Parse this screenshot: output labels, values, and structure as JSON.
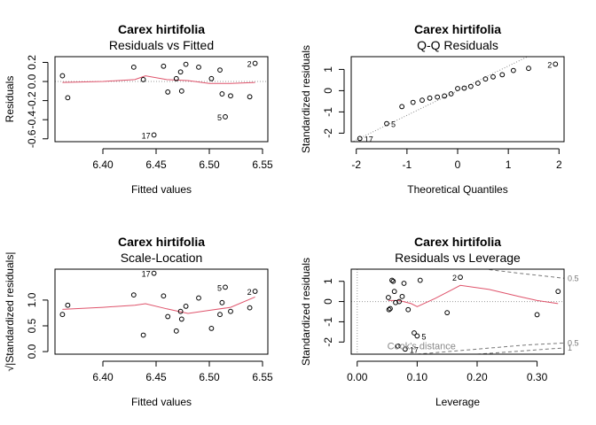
{
  "chart_data": [
    {
      "type": "scatter",
      "title": "Carex hirtifolia",
      "subtitle": "Residuals vs Fitted",
      "xlabel": "Fitted values",
      "ylabel": "Residuals",
      "xlim": [
        6.355,
        6.555
      ],
      "ylim": [
        -0.63,
        0.26
      ],
      "xticks": [
        6.4,
        6.45,
        6.5,
        6.55
      ],
      "xtick_labels": [
        "6.40",
        "6.45",
        "6.50",
        "6.55"
      ],
      "yticks": [
        -0.6,
        -0.4,
        -0.2,
        0.0,
        0.2
      ],
      "ytick_labels": [
        "-0.6",
        "-0.4",
        "-0.2",
        "0.0",
        "0.2"
      ],
      "ref_line": {
        "y": 0,
        "style": "dotted"
      },
      "points": [
        {
          "x": 6.362,
          "y": 0.06
        },
        {
          "x": 6.367,
          "y": -0.17
        },
        {
          "x": 6.429,
          "y": 0.15
        },
        {
          "x": 6.438,
          "y": 0.02
        },
        {
          "x": 6.448,
          "y": -0.56,
          "label": "17"
        },
        {
          "x": 6.457,
          "y": 0.16
        },
        {
          "x": 6.461,
          "y": -0.11
        },
        {
          "x": 6.469,
          "y": 0.03
        },
        {
          "x": 6.473,
          "y": 0.1
        },
        {
          "x": 6.474,
          "y": -0.1
        },
        {
          "x": 6.478,
          "y": 0.18
        },
        {
          "x": 6.49,
          "y": 0.15
        },
        {
          "x": 6.502,
          "y": 0.03
        },
        {
          "x": 6.51,
          "y": 0.12
        },
        {
          "x": 6.512,
          "y": -0.13
        },
        {
          "x": 6.515,
          "y": -0.37,
          "label": "5"
        },
        {
          "x": 6.52,
          "y": -0.15
        },
        {
          "x": 6.538,
          "y": -0.16
        },
        {
          "x": 6.543,
          "y": 0.19,
          "label": "2"
        }
      ],
      "smooth": [
        [
          6.362,
          -0.01
        ],
        [
          6.4,
          0.0
        ],
        [
          6.43,
          0.02
        ],
        [
          6.44,
          0.06
        ],
        [
          6.46,
          0.02
        ],
        [
          6.48,
          0.01
        ],
        [
          6.5,
          -0.02
        ],
        [
          6.52,
          -0.02
        ],
        [
          6.543,
          -0.01
        ]
      ]
    },
    {
      "type": "scatter",
      "title": "Carex hirtifolia",
      "subtitle": "Q-Q Residuals",
      "xlabel": "Theoretical Quantiles",
      "ylabel": "Standardized residuals",
      "xlim": [
        -2.1,
        2.1
      ],
      "ylim": [
        -2.4,
        1.6
      ],
      "xticks": [
        -2,
        -1,
        0,
        1,
        2
      ],
      "xtick_labels": [
        "-2",
        "-1",
        "0",
        "1",
        "2"
      ],
      "yticks": [
        -2,
        -1,
        0,
        1
      ],
      "ytick_labels": [
        "-2",
        "-1",
        "0",
        "1"
      ],
      "ref_line": {
        "slope": 1.16,
        "intercept": 0.0,
        "style": "dotted"
      },
      "points": [
        {
          "x": -1.93,
          "y": -2.25,
          "label": "17"
        },
        {
          "x": -1.4,
          "y": -1.55,
          "label": "5"
        },
        {
          "x": -1.1,
          "y": -0.75
        },
        {
          "x": -0.88,
          "y": -0.55
        },
        {
          "x": -0.7,
          "y": -0.45
        },
        {
          "x": -0.55,
          "y": -0.35
        },
        {
          "x": -0.4,
          "y": -0.3
        },
        {
          "x": -0.26,
          "y": -0.25
        },
        {
          "x": -0.13,
          "y": -0.15
        },
        {
          "x": 0.0,
          "y": 0.1
        },
        {
          "x": 0.13,
          "y": 0.12
        },
        {
          "x": 0.26,
          "y": 0.2
        },
        {
          "x": 0.4,
          "y": 0.35
        },
        {
          "x": 0.55,
          "y": 0.55
        },
        {
          "x": 0.7,
          "y": 0.65
        },
        {
          "x": 0.88,
          "y": 0.75
        },
        {
          "x": 1.1,
          "y": 0.95
        },
        {
          "x": 1.4,
          "y": 1.05
        },
        {
          "x": 1.93,
          "y": 1.25,
          "label": "2"
        }
      ]
    },
    {
      "type": "scatter",
      "title": "Carex hirtifolia",
      "subtitle": "Scale-Location",
      "xlabel": "Fitted values",
      "ylabel": "√|Standardized residuals|",
      "xlim": [
        6.355,
        6.555
      ],
      "ylim": [
        -0.05,
        1.6
      ],
      "xticks": [
        6.4,
        6.45,
        6.5,
        6.55
      ],
      "xtick_labels": [
        "6.40",
        "6.45",
        "6.50",
        "6.55"
      ],
      "yticks": [
        0.0,
        0.5,
        1.0
      ],
      "ytick_labels": [
        "0.0",
        "0.5",
        "1.0"
      ],
      "points": [
        {
          "x": 6.362,
          "y": 0.72
        },
        {
          "x": 6.367,
          "y": 0.9
        },
        {
          "x": 6.429,
          "y": 1.1
        },
        {
          "x": 6.438,
          "y": 0.32
        },
        {
          "x": 6.448,
          "y": 1.52,
          "label": "17"
        },
        {
          "x": 6.457,
          "y": 1.08
        },
        {
          "x": 6.461,
          "y": 0.68
        },
        {
          "x": 6.469,
          "y": 0.4
        },
        {
          "x": 6.473,
          "y": 0.78
        },
        {
          "x": 6.474,
          "y": 0.63
        },
        {
          "x": 6.478,
          "y": 0.88
        },
        {
          "x": 6.49,
          "y": 1.04
        },
        {
          "x": 6.502,
          "y": 0.45
        },
        {
          "x": 6.51,
          "y": 0.72
        },
        {
          "x": 6.512,
          "y": 0.95
        },
        {
          "x": 6.515,
          "y": 1.25,
          "label": "5"
        },
        {
          "x": 6.52,
          "y": 0.78
        },
        {
          "x": 6.538,
          "y": 0.85
        },
        {
          "x": 6.543,
          "y": 1.17,
          "label": "2"
        }
      ],
      "smooth": [
        [
          6.362,
          0.82
        ],
        [
          6.4,
          0.86
        ],
        [
          6.43,
          0.9
        ],
        [
          6.44,
          0.93
        ],
        [
          6.46,
          0.83
        ],
        [
          6.48,
          0.74
        ],
        [
          6.5,
          0.8
        ],
        [
          6.52,
          0.86
        ],
        [
          6.543,
          1.06
        ]
      ]
    },
    {
      "type": "scatter",
      "title": "Carex hirtifolia",
      "subtitle": "Residuals vs Leverage",
      "xlabel": "Leverage",
      "ylabel": "Standardized residuals",
      "xlim": [
        -0.01,
        0.345
      ],
      "ylim": [
        -2.6,
        1.6
      ],
      "xticks": [
        0.0,
        0.1,
        0.2,
        0.3
      ],
      "xtick_labels": [
        "0.00",
        "0.10",
        "0.20",
        "0.30"
      ],
      "yticks": [
        -2,
        -1,
        0,
        1
      ],
      "ytick_labels": [
        "-2",
        "-1",
        "0",
        "1"
      ],
      "ref_line": {
        "y": 0,
        "x": 0,
        "style": "dotted"
      },
      "cooks_label": "Cook's distance",
      "contours": [
        {
          "label": "0.5",
          "side": "upper",
          "points": [
            [
              0.22,
              1.58
            ],
            [
              0.27,
              1.4
            ],
            [
              0.33,
              1.2
            ],
            [
              0.345,
              1.15
            ]
          ]
        },
        {
          "label": "0.5",
          "side": "lower",
          "points": [
            [
              0.1,
              -2.6
            ],
            [
              0.2,
              -2.35
            ],
            [
              0.28,
              -2.15
            ],
            [
              0.345,
              -2.05
            ]
          ]
        },
        {
          "label": "1",
          "side": "lower",
          "points": [
            [
              0.2,
              -2.6
            ],
            [
              0.27,
              -2.45
            ],
            [
              0.33,
              -2.32
            ],
            [
              0.345,
              -2.3
            ]
          ]
        }
      ],
      "points": [
        {
          "x": 0.052,
          "y": 0.2
        },
        {
          "x": 0.053,
          "y": -0.4
        },
        {
          "x": 0.055,
          "y": -0.35
        },
        {
          "x": 0.058,
          "y": 1.05
        },
        {
          "x": 0.06,
          "y": 1.0
        },
        {
          "x": 0.062,
          "y": 0.5
        },
        {
          "x": 0.064,
          "y": -0.05
        },
        {
          "x": 0.068,
          "y": -2.2
        },
        {
          "x": 0.07,
          "y": 0.0
        },
        {
          "x": 0.075,
          "y": 0.25
        },
        {
          "x": 0.078,
          "y": 0.9
        },
        {
          "x": 0.08,
          "y": -2.35,
          "label": "17"
        },
        {
          "x": 0.085,
          "y": -0.4
        },
        {
          "x": 0.095,
          "y": -1.55
        },
        {
          "x": 0.1,
          "y": -1.7,
          "label": "5"
        },
        {
          "x": 0.105,
          "y": 1.05
        },
        {
          "x": 0.15,
          "y": -0.55
        },
        {
          "x": 0.172,
          "y": 1.2,
          "label": "2"
        },
        {
          "x": 0.3,
          "y": -0.65
        },
        {
          "x": 0.335,
          "y": 0.5
        }
      ],
      "smooth": [
        [
          0.052,
          0.05
        ],
        [
          0.07,
          0.05
        ],
        [
          0.09,
          -0.1
        ],
        [
          0.1,
          -0.25
        ],
        [
          0.13,
          0.15
        ],
        [
          0.172,
          0.8
        ],
        [
          0.22,
          0.6
        ],
        [
          0.27,
          0.25
        ],
        [
          0.3,
          0.05
        ],
        [
          0.335,
          -0.1
        ]
      ]
    }
  ]
}
